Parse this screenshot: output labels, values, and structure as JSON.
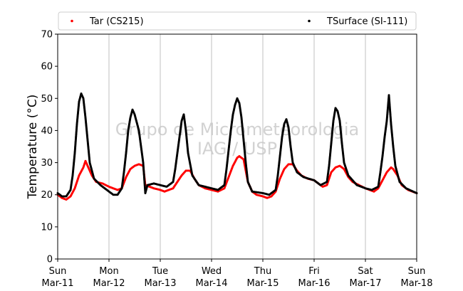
{
  "chart_data": {
    "type": "scatter",
    "title": "",
    "xlabel": "",
    "ylabel": "Temperature (°C)",
    "ylim": [
      0,
      70
    ],
    "yticks": [
      0,
      10,
      20,
      30,
      40,
      50,
      60,
      70
    ],
    "xlim": [
      "2018-03-11T00:00",
      "2018-03-18T00:00"
    ],
    "x_tick_labels": [
      {
        "day": "Sun",
        "date": "Mar-11"
      },
      {
        "day": "Mon",
        "date": "Mar-12"
      },
      {
        "day": "Tue",
        "date": "Mar-13"
      },
      {
        "day": "Wed",
        "date": "Mar-14"
      },
      {
        "day": "Thu",
        "date": "Mar-15"
      },
      {
        "day": "Fri",
        "date": "Mar-16"
      },
      {
        "day": "Sat",
        "date": "Mar-17"
      },
      {
        "day": "Sun",
        "date": "Mar-18"
      }
    ],
    "grid": "vertical",
    "legend_position": "top",
    "watermark": [
      "Grupo de Micrometeorologia",
      "IAG / USP"
    ],
    "series": [
      {
        "name": "Tar (CS215)",
        "color": "#ff0000",
        "points": [
          [
            "2018-03-11T00:00",
            20.0
          ],
          [
            "2018-03-11T02:00",
            19.0
          ],
          [
            "2018-03-11T04:00",
            18.5
          ],
          [
            "2018-03-11T06:00",
            19.5
          ],
          [
            "2018-03-11T08:00",
            22.0
          ],
          [
            "2018-03-11T10:00",
            26.0
          ],
          [
            "2018-03-11T12:00",
            28.5
          ],
          [
            "2018-03-11T13:00",
            30.5
          ],
          [
            "2018-03-11T14:00",
            29.0
          ],
          [
            "2018-03-11T16:00",
            26.0
          ],
          [
            "2018-03-11T18:00",
            24.0
          ],
          [
            "2018-03-11T21:00",
            23.5
          ],
          [
            "2018-03-12T00:00",
            22.5
          ],
          [
            "2018-03-12T02:00",
            22.0
          ],
          [
            "2018-03-12T04:00",
            21.5
          ],
          [
            "2018-03-12T06:00",
            22.0
          ],
          [
            "2018-03-12T08:00",
            25.5
          ],
          [
            "2018-03-12T10:00",
            28.0
          ],
          [
            "2018-03-12T12:00",
            29.0
          ],
          [
            "2018-03-12T14:00",
            29.5
          ],
          [
            "2018-03-12T16:00",
            29.0
          ],
          [
            "2018-03-12T17:00",
            23.0
          ],
          [
            "2018-03-12T19:00",
            22.5
          ],
          [
            "2018-03-12T21:00",
            22.0
          ],
          [
            "2018-03-13T00:00",
            21.5
          ],
          [
            "2018-03-13T02:00",
            21.0
          ],
          [
            "2018-03-13T04:00",
            21.5
          ],
          [
            "2018-03-13T06:00",
            22.0
          ],
          [
            "2018-03-13T08:00",
            24.0
          ],
          [
            "2018-03-13T10:00",
            26.0
          ],
          [
            "2018-03-13T12:00",
            27.5
          ],
          [
            "2018-03-13T14:00",
            27.5
          ],
          [
            "2018-03-13T16:00",
            25.0
          ],
          [
            "2018-03-13T18:00",
            23.0
          ],
          [
            "2018-03-13T21:00",
            22.0
          ],
          [
            "2018-03-14T00:00",
            21.5
          ],
          [
            "2018-03-14T03:00",
            21.0
          ],
          [
            "2018-03-14T06:00",
            22.0
          ],
          [
            "2018-03-14T08:00",
            25.5
          ],
          [
            "2018-03-14T10:00",
            29.0
          ],
          [
            "2018-03-14T12:00",
            31.5
          ],
          [
            "2018-03-14T13:00",
            32.0
          ],
          [
            "2018-03-14T15:00",
            31.0
          ],
          [
            "2018-03-14T17:00",
            24.0
          ],
          [
            "2018-03-14T19:00",
            21.0
          ],
          [
            "2018-03-14T21:00",
            20.0
          ],
          [
            "2018-03-15T00:00",
            19.5
          ],
          [
            "2018-03-15T02:00",
            19.0
          ],
          [
            "2018-03-15T04:00",
            19.5
          ],
          [
            "2018-03-15T06:00",
            21.0
          ],
          [
            "2018-03-15T08:00",
            25.0
          ],
          [
            "2018-03-15T10:00",
            28.0
          ],
          [
            "2018-03-15T12:00",
            29.5
          ],
          [
            "2018-03-15T14:00",
            29.5
          ],
          [
            "2018-03-15T16:00",
            27.5
          ],
          [
            "2018-03-15T18:00",
            26.0
          ],
          [
            "2018-03-15T21:00",
            25.0
          ],
          [
            "2018-03-16T00:00",
            24.5
          ],
          [
            "2018-03-16T02:00",
            23.5
          ],
          [
            "2018-03-16T04:00",
            22.5
          ],
          [
            "2018-03-16T06:00",
            23.0
          ],
          [
            "2018-03-16T08:00",
            27.0
          ],
          [
            "2018-03-16T10:00",
            28.5
          ],
          [
            "2018-03-16T12:00",
            29.0
          ],
          [
            "2018-03-16T14:00",
            28.0
          ],
          [
            "2018-03-16T16:00",
            25.5
          ],
          [
            "2018-03-16T18:00",
            24.0
          ],
          [
            "2018-03-16T21:00",
            23.0
          ],
          [
            "2018-03-17T00:00",
            22.0
          ],
          [
            "2018-03-17T02:00",
            21.5
          ],
          [
            "2018-03-17T04:00",
            21.0
          ],
          [
            "2018-03-17T06:00",
            22.0
          ],
          [
            "2018-03-17T08:00",
            24.5
          ],
          [
            "2018-03-17T10:00",
            27.0
          ],
          [
            "2018-03-17T12:00",
            28.5
          ],
          [
            "2018-03-17T13:00",
            28.0
          ],
          [
            "2018-03-17T15:00",
            26.0
          ],
          [
            "2018-03-17T17:00",
            23.0
          ],
          [
            "2018-03-17T20:00",
            21.5
          ],
          [
            "2018-03-18T00:00",
            20.5
          ]
        ]
      },
      {
        "name": "TSurface (SI-111)",
        "color": "#000000",
        "points": [
          [
            "2018-03-11T00:00",
            20.5
          ],
          [
            "2018-03-11T02:00",
            19.5
          ],
          [
            "2018-03-11T04:00",
            19.5
          ],
          [
            "2018-03-11T06:00",
            21.5
          ],
          [
            "2018-03-11T07:00",
            26.0
          ],
          [
            "2018-03-11T08:00",
            33.0
          ],
          [
            "2018-03-11T09:00",
            42.0
          ],
          [
            "2018-03-11T10:00",
            49.0
          ],
          [
            "2018-03-11T11:00",
            51.5
          ],
          [
            "2018-03-11T12:00",
            50.0
          ],
          [
            "2018-03-11T13:00",
            44.0
          ],
          [
            "2018-03-11T14:00",
            37.0
          ],
          [
            "2018-03-11T15:00",
            30.0
          ],
          [
            "2018-03-11T17:00",
            25.0
          ],
          [
            "2018-03-11T20:00",
            23.0
          ],
          [
            "2018-03-12T00:00",
            21.0
          ],
          [
            "2018-03-12T02:00",
            20.0
          ],
          [
            "2018-03-12T04:00",
            20.0
          ],
          [
            "2018-03-12T06:00",
            22.0
          ],
          [
            "2018-03-12T07:00",
            27.0
          ],
          [
            "2018-03-12T08:00",
            33.0
          ],
          [
            "2018-03-12T09:00",
            40.0
          ],
          [
            "2018-03-12T10:00",
            44.0
          ],
          [
            "2018-03-12T11:00",
            46.5
          ],
          [
            "2018-03-12T12:00",
            45.0
          ],
          [
            "2018-03-12T14:00",
            40.0
          ],
          [
            "2018-03-12T15:00",
            35.0
          ],
          [
            "2018-03-12T16:00",
            30.0
          ],
          [
            "2018-03-12T17:00",
            20.5
          ],
          [
            "2018-03-12T18:00",
            23.0
          ],
          [
            "2018-03-12T21:00",
            23.5
          ],
          [
            "2018-03-13T00:00",
            23.0
          ],
          [
            "2018-03-13T03:00",
            22.5
          ],
          [
            "2018-03-13T06:00",
            24.0
          ],
          [
            "2018-03-13T07:00",
            28.0
          ],
          [
            "2018-03-13T08:00",
            33.0
          ],
          [
            "2018-03-13T09:00",
            38.0
          ],
          [
            "2018-03-13T10:00",
            43.0
          ],
          [
            "2018-03-13T11:00",
            45.0
          ],
          [
            "2018-03-13T12:00",
            40.0
          ],
          [
            "2018-03-13T13:00",
            33.0
          ],
          [
            "2018-03-13T15:00",
            26.0
          ],
          [
            "2018-03-13T18:00",
            23.0
          ],
          [
            "2018-03-13T21:00",
            22.5
          ],
          [
            "2018-03-14T00:00",
            22.0
          ],
          [
            "2018-03-14T03:00",
            21.5
          ],
          [
            "2018-03-14T06:00",
            23.0
          ],
          [
            "2018-03-14T07:00",
            28.0
          ],
          [
            "2018-03-14T08:00",
            34.0
          ],
          [
            "2018-03-14T09:00",
            40.0
          ],
          [
            "2018-03-14T10:00",
            45.0
          ],
          [
            "2018-03-14T11:00",
            48.0
          ],
          [
            "2018-03-14T12:00",
            50.0
          ],
          [
            "2018-03-14T13:00",
            48.5
          ],
          [
            "2018-03-14T14:00",
            44.0
          ],
          [
            "2018-03-14T15:00",
            37.0
          ],
          [
            "2018-03-14T16:00",
            30.0
          ],
          [
            "2018-03-14T17:00",
            24.0
          ],
          [
            "2018-03-14T19:00",
            21.0
          ],
          [
            "2018-03-15T00:00",
            20.5
          ],
          [
            "2018-03-15T03:00",
            20.0
          ],
          [
            "2018-03-15T06:00",
            21.5
          ],
          [
            "2018-03-15T07:00",
            26.0
          ],
          [
            "2018-03-15T08:00",
            32.0
          ],
          [
            "2018-03-15T09:00",
            38.0
          ],
          [
            "2018-03-15T10:00",
            42.0
          ],
          [
            "2018-03-15T11:00",
            43.5
          ],
          [
            "2018-03-15T12:00",
            41.0
          ],
          [
            "2018-03-15T13:00",
            35.0
          ],
          [
            "2018-03-15T14:00",
            30.0
          ],
          [
            "2018-03-15T16:00",
            27.0
          ],
          [
            "2018-03-15T19:00",
            25.5
          ],
          [
            "2018-03-16T00:00",
            24.5
          ],
          [
            "2018-03-16T03:00",
            23.0
          ],
          [
            "2018-03-16T06:00",
            24.0
          ],
          [
            "2018-03-16T07:00",
            29.0
          ],
          [
            "2018-03-16T08:00",
            36.0
          ],
          [
            "2018-03-16T09:00",
            43.0
          ],
          [
            "2018-03-16T10:00",
            47.0
          ],
          [
            "2018-03-16T11:00",
            46.0
          ],
          [
            "2018-03-16T12:00",
            43.0
          ],
          [
            "2018-03-16T13:00",
            36.0
          ],
          [
            "2018-03-16T14:00",
            30.0
          ],
          [
            "2018-03-16T16:00",
            26.0
          ],
          [
            "2018-03-16T20:00",
            23.0
          ],
          [
            "2018-03-17T00:00",
            22.0
          ],
          [
            "2018-03-17T03:00",
            21.5
          ],
          [
            "2018-03-17T06:00",
            22.5
          ],
          [
            "2018-03-17T07:00",
            27.0
          ],
          [
            "2018-03-17T08:00",
            32.0
          ],
          [
            "2018-03-17T09:00",
            38.0
          ],
          [
            "2018-03-17T10:00",
            43.0
          ],
          [
            "2018-03-17T11:00",
            51.0
          ],
          [
            "2018-03-17T12:00",
            42.0
          ],
          [
            "2018-03-17T13:00",
            35.0
          ],
          [
            "2018-03-17T14:00",
            29.0
          ],
          [
            "2018-03-17T16:00",
            24.0
          ],
          [
            "2018-03-17T19:00",
            22.0
          ],
          [
            "2018-03-18T00:00",
            20.5
          ]
        ]
      }
    ]
  }
}
